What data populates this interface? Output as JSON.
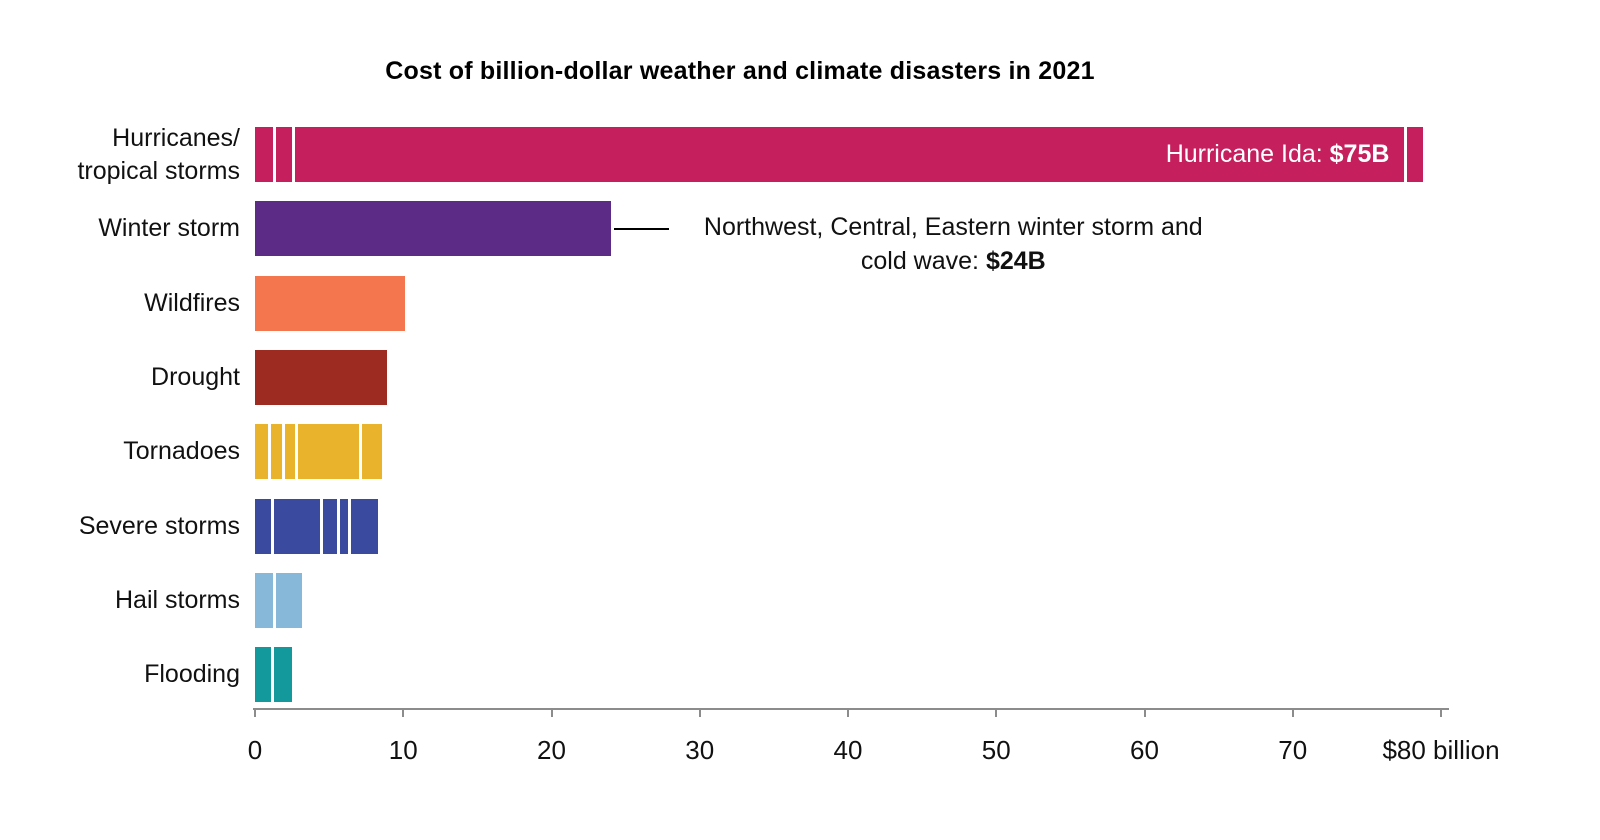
{
  "chart_data": {
    "type": "bar",
    "orientation": "horizontal",
    "title": "Cost of billion-dollar weather and climate disasters in 2021",
    "xlabel": "",
    "ylabel": "",
    "unit": "billions of US dollars",
    "xlim": [
      0,
      80
    ],
    "grid": false,
    "legend": "none",
    "axis_ticks": [
      {
        "value": 0,
        "label": "0"
      },
      {
        "value": 10,
        "label": "10"
      },
      {
        "value": 20,
        "label": "20"
      },
      {
        "value": 30,
        "label": "30"
      },
      {
        "value": 40,
        "label": "40"
      },
      {
        "value": 50,
        "label": "50"
      },
      {
        "value": 60,
        "label": "60"
      },
      {
        "value": 70,
        "label": "70"
      },
      {
        "value": 80,
        "label": "$80 billion"
      }
    ],
    "rows": [
      {
        "id": "hurricanes",
        "category": "Hurricanes/tropical storms",
        "label_lines": [
          "Hurricanes/",
          "tropical storms"
        ],
        "total": 78.8,
        "color": "#c51f5e",
        "separators": [
          1.3,
          2.6,
          77.6
        ],
        "inner_label": {
          "text": "Hurricane Ida: ",
          "bold": "$75B"
        }
      },
      {
        "id": "winter-storm",
        "category": "Winter storm",
        "label_lines": [
          "Winter storm"
        ],
        "total": 24,
        "color": "#5b2b86",
        "separators": [],
        "callout": {
          "line1": "Northwest, Central, Eastern winter storm and",
          "line2": "cold wave: ",
          "bold": "$24B"
        }
      },
      {
        "id": "wildfires",
        "category": "Wildfires",
        "label_lines": [
          "Wildfires"
        ],
        "total": 10.1,
        "color": "#f4764f",
        "separators": []
      },
      {
        "id": "drought",
        "category": "Drought",
        "label_lines": [
          "Drought"
        ],
        "total": 8.9,
        "color": "#9e2b21",
        "separators": []
      },
      {
        "id": "tornadoes",
        "category": "Tornadoes",
        "label_lines": [
          "Tornadoes"
        ],
        "total": 8.6,
        "color": "#e9b32b",
        "separators": [
          1.0,
          1.9,
          2.8,
          7.1
        ]
      },
      {
        "id": "severe-storms",
        "category": "Severe storms",
        "label_lines": [
          "Severe storms"
        ],
        "total": 8.3,
        "color": "#3a4a9f",
        "separators": [
          1.2,
          4.5,
          5.6,
          6.4
        ]
      },
      {
        "id": "hail-storms",
        "category": "Hail storms",
        "label_lines": [
          "Hail storms"
        ],
        "total": 3.2,
        "color": "#87b8da",
        "separators": [
          1.3
        ]
      },
      {
        "id": "flooding",
        "category": "Flooding",
        "label_lines": [
          "Flooding"
        ],
        "total": 2.5,
        "color": "#13999b",
        "separators": [
          1.2
        ]
      }
    ]
  }
}
